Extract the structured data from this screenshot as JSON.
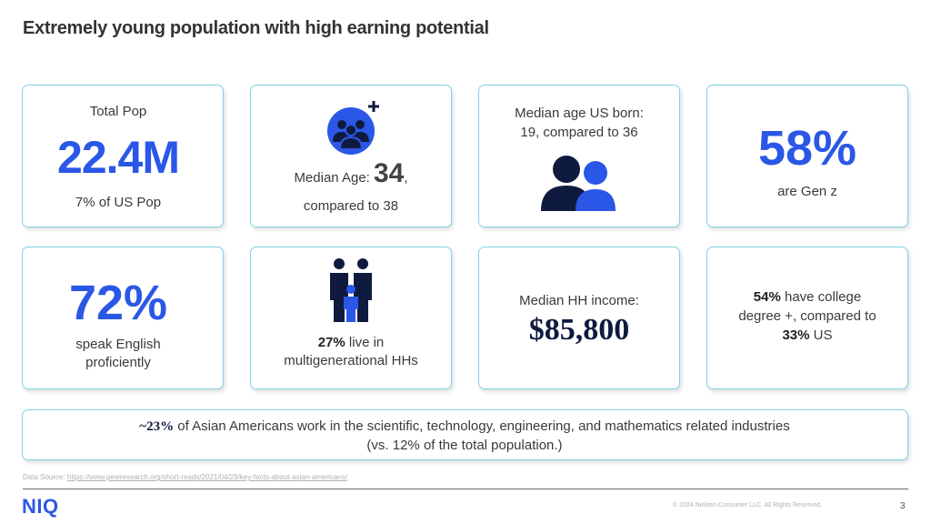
{
  "title": "Extremely young population with high earning potential",
  "cards": {
    "total_pop": {
      "label": "Total Pop",
      "value": "22.4M",
      "sub": "7% of US Pop"
    },
    "median_age": {
      "prefix": "Median Age: ",
      "value": "34",
      "comma": ",",
      "line2": "compared to 38",
      "icon": "group-plus-icon"
    },
    "us_born": {
      "label_line1": "Median age US born:",
      "label_line2": "19, compared to 36",
      "icon": "two-people-icon"
    },
    "gen_z": {
      "value": "58%",
      "sub": "are Gen z"
    },
    "english": {
      "value": "72%",
      "sub_line1": "speak English",
      "sub_line2": "proficiently"
    },
    "multigen": {
      "highlight": "27%",
      "text1": " live in",
      "text2": "multigenerational  HHs",
      "icon": "family-icon"
    },
    "income": {
      "label": "Median HH income:",
      "value": "$85,800"
    },
    "college": {
      "highlight1": "54%",
      "text1": " have college",
      "text2": "degree +, compared to",
      "highlight2": "33%",
      "text3": " US"
    }
  },
  "banner": {
    "highlight": "~23%",
    "text1": " of Asian Americans work in the scientific, technology, engineering,  and mathematics  related industries",
    "text2": "(vs. 12% of the total population.)"
  },
  "footer": {
    "source_prefix": "Data Source: ",
    "source_url": "https://www.pewresearch.org/short-reads/2021/04/29/key-facts-about-asian-americans/",
    "logo": "NIQ",
    "copyright": "© 2024 Nielsen Consumer LLC. All Rights Reserved.",
    "page": "3"
  },
  "colors": {
    "accent": "#2a57e6",
    "border": "#7fd3e6",
    "navy": "#0f1a3f"
  }
}
